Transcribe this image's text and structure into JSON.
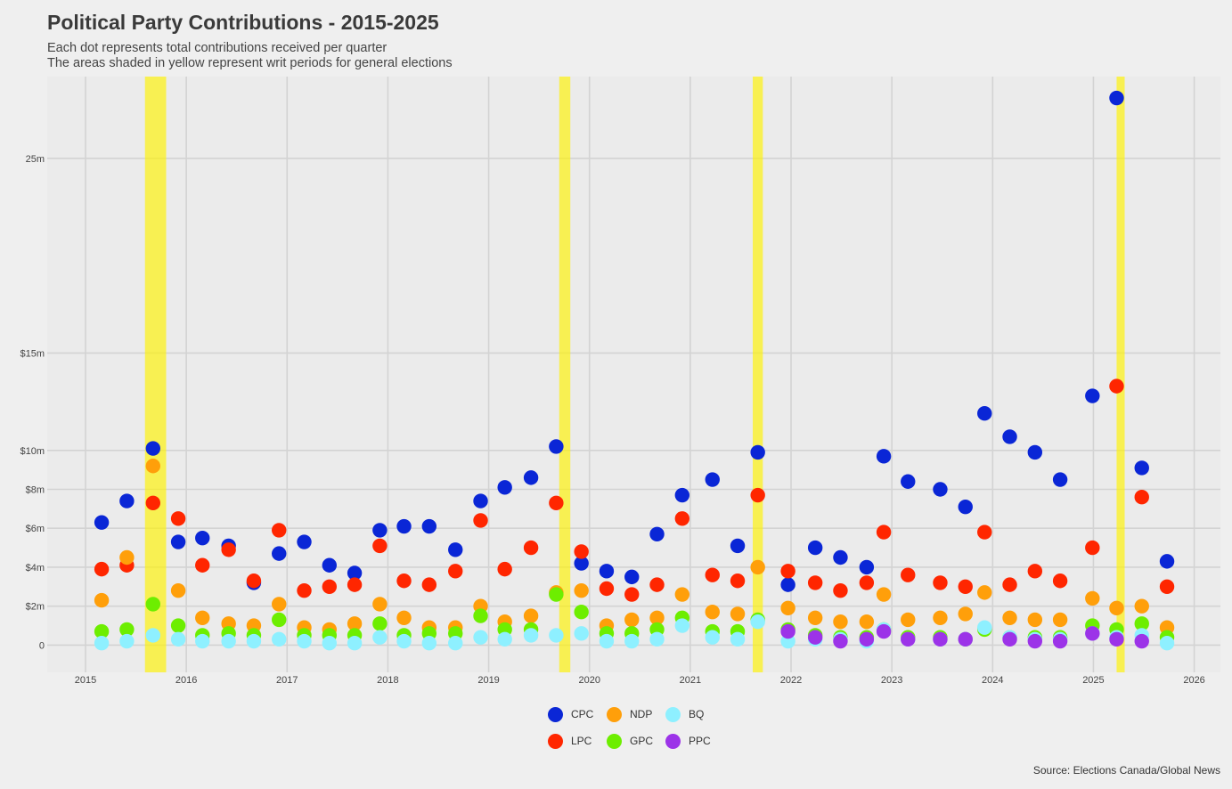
{
  "title": "Political Party Contributions - 2015-2025",
  "subtitle_line1": "Each dot represents total contributions received per quarter",
  "subtitle_line2": "The areas shaded in yellow represent writ periods for general elections",
  "source": "Source: Elections Canada/Global News",
  "chart_data": {
    "type": "scatter",
    "x_ticks": [
      "2015",
      "2016",
      "2017",
      "2018",
      "2019",
      "2020",
      "2021",
      "2022",
      "2023",
      "2024",
      "2025",
      "2026"
    ],
    "y_ticks": [
      {
        "value": 0,
        "label": "0"
      },
      {
        "value": 2000000,
        "label": "$2m"
      },
      {
        "value": 4000000,
        "label": "$4m"
      },
      {
        "value": 6000000,
        "label": "$6m"
      },
      {
        "value": 8000000,
        "label": "$8m"
      },
      {
        "value": 10000000,
        "label": "$10m"
      },
      {
        "value": 15000000,
        "label": "$15m"
      },
      {
        "value": 25000000,
        "label": "25m"
      }
    ],
    "xlim": [
      2014.62,
      2026.26
    ],
    "ylim": [
      -1400000,
      29200000
    ],
    "writ_periods": [
      [
        2015.59,
        2015.8
      ],
      [
        2019.7,
        2019.81
      ],
      [
        2021.62,
        2021.72
      ],
      [
        2025.23,
        2025.31
      ]
    ],
    "series": [
      {
        "name": "CPC",
        "color": "#0a26d6",
        "points": [
          [
            2015.16,
            6.3
          ],
          [
            2015.41,
            7.4
          ],
          [
            2015.67,
            10.1
          ],
          [
            2015.92,
            5.3
          ],
          [
            2016.16,
            5.5
          ],
          [
            2016.42,
            5.1
          ],
          [
            2016.67,
            3.2
          ],
          [
            2016.92,
            4.7
          ],
          [
            2017.17,
            5.3
          ],
          [
            2017.42,
            4.1
          ],
          [
            2017.67,
            3.7
          ],
          [
            2017.92,
            5.9
          ],
          [
            2018.16,
            6.1
          ],
          [
            2018.41,
            6.1
          ],
          [
            2018.67,
            4.9
          ],
          [
            2018.92,
            7.4
          ],
          [
            2019.16,
            8.1
          ],
          [
            2019.42,
            8.6
          ],
          [
            2019.67,
            10.2
          ],
          [
            2019.92,
            4.2
          ],
          [
            2020.17,
            3.8
          ],
          [
            2020.42,
            3.5
          ],
          [
            2020.67,
            5.7
          ],
          [
            2020.92,
            7.7
          ],
          [
            2021.22,
            8.5
          ],
          [
            2021.47,
            5.1
          ],
          [
            2021.67,
            9.9
          ],
          [
            2021.97,
            3.1
          ],
          [
            2022.24,
            5.0
          ],
          [
            2022.49,
            4.5
          ],
          [
            2022.75,
            4.0
          ],
          [
            2022.92,
            9.7
          ],
          [
            2023.16,
            8.4
          ],
          [
            2023.48,
            8.0
          ],
          [
            2023.73,
            7.1
          ],
          [
            2023.92,
            11.9
          ],
          [
            2024.17,
            10.7
          ],
          [
            2024.42,
            9.9
          ],
          [
            2024.67,
            8.5
          ],
          [
            2024.99,
            12.8
          ],
          [
            2025.23,
            28.1
          ],
          [
            2025.48,
            9.1
          ],
          [
            2025.73,
            4.3
          ]
        ]
      },
      {
        "name": "LPC",
        "color": "#ff2600",
        "points": [
          [
            2015.16,
            3.9
          ],
          [
            2015.41,
            4.1
          ],
          [
            2015.67,
            7.3
          ],
          [
            2015.92,
            6.5
          ],
          [
            2016.16,
            4.1
          ],
          [
            2016.42,
            4.9
          ],
          [
            2016.67,
            3.3
          ],
          [
            2016.92,
            5.9
          ],
          [
            2017.17,
            2.8
          ],
          [
            2017.42,
            3.0
          ],
          [
            2017.67,
            3.1
          ],
          [
            2017.92,
            5.1
          ],
          [
            2018.16,
            3.3
          ],
          [
            2018.41,
            3.1
          ],
          [
            2018.67,
            3.8
          ],
          [
            2018.92,
            6.4
          ],
          [
            2019.16,
            3.9
          ],
          [
            2019.42,
            5.0
          ],
          [
            2019.67,
            7.3
          ],
          [
            2019.92,
            4.8
          ],
          [
            2020.17,
            2.9
          ],
          [
            2020.42,
            2.6
          ],
          [
            2020.67,
            3.1
          ],
          [
            2020.92,
            6.5
          ],
          [
            2021.22,
            3.6
          ],
          [
            2021.47,
            3.3
          ],
          [
            2021.67,
            7.7
          ],
          [
            2021.97,
            3.8
          ],
          [
            2022.24,
            3.2
          ],
          [
            2022.49,
            2.8
          ],
          [
            2022.75,
            3.2
          ],
          [
            2022.92,
            5.8
          ],
          [
            2023.16,
            3.6
          ],
          [
            2023.48,
            3.2
          ],
          [
            2023.73,
            3.0
          ],
          [
            2023.92,
            5.8
          ],
          [
            2024.17,
            3.1
          ],
          [
            2024.42,
            3.8
          ],
          [
            2024.67,
            3.3
          ],
          [
            2024.99,
            5.0
          ],
          [
            2025.23,
            13.3
          ],
          [
            2025.48,
            7.6
          ],
          [
            2025.73,
            3.0
          ]
        ]
      },
      {
        "name": "NDP",
        "color": "#ff9f0a",
        "points": [
          [
            2015.16,
            2.3
          ],
          [
            2015.41,
            4.5
          ],
          [
            2015.67,
            9.2
          ],
          [
            2015.92,
            2.8
          ],
          [
            2016.16,
            1.4
          ],
          [
            2016.42,
            1.1
          ],
          [
            2016.67,
            1.0
          ],
          [
            2016.92,
            2.1
          ],
          [
            2017.17,
            0.9
          ],
          [
            2017.42,
            0.8
          ],
          [
            2017.67,
            1.1
          ],
          [
            2017.92,
            2.1
          ],
          [
            2018.16,
            1.4
          ],
          [
            2018.41,
            0.9
          ],
          [
            2018.67,
            0.9
          ],
          [
            2018.92,
            2.0
          ],
          [
            2019.16,
            1.2
          ],
          [
            2019.42,
            1.5
          ],
          [
            2019.67,
            2.7
          ],
          [
            2019.92,
            2.8
          ],
          [
            2020.17,
            1.0
          ],
          [
            2020.42,
            1.3
          ],
          [
            2020.67,
            1.4
          ],
          [
            2020.92,
            2.6
          ],
          [
            2021.22,
            1.7
          ],
          [
            2021.47,
            1.6
          ],
          [
            2021.67,
            4.0
          ],
          [
            2021.97,
            1.9
          ],
          [
            2022.24,
            1.4
          ],
          [
            2022.49,
            1.2
          ],
          [
            2022.75,
            1.2
          ],
          [
            2022.92,
            2.6
          ],
          [
            2023.16,
            1.3
          ],
          [
            2023.48,
            1.4
          ],
          [
            2023.73,
            1.6
          ],
          [
            2023.92,
            2.7
          ],
          [
            2024.17,
            1.4
          ],
          [
            2024.42,
            1.3
          ],
          [
            2024.67,
            1.3
          ],
          [
            2024.99,
            2.4
          ],
          [
            2025.23,
            1.9
          ],
          [
            2025.48,
            2.0
          ],
          [
            2025.73,
            0.9
          ]
        ]
      },
      {
        "name": "GPC",
        "color": "#6dee00",
        "points": [
          [
            2015.16,
            0.7
          ],
          [
            2015.41,
            0.8
          ],
          [
            2015.67,
            2.1
          ],
          [
            2015.92,
            1.0
          ],
          [
            2016.16,
            0.5
          ],
          [
            2016.42,
            0.6
          ],
          [
            2016.67,
            0.5
          ],
          [
            2016.92,
            1.3
          ],
          [
            2017.17,
            0.5
          ],
          [
            2017.42,
            0.5
          ],
          [
            2017.67,
            0.5
          ],
          [
            2017.92,
            1.1
          ],
          [
            2018.16,
            0.5
          ],
          [
            2018.41,
            0.6
          ],
          [
            2018.67,
            0.6
          ],
          [
            2018.92,
            1.5
          ],
          [
            2019.16,
            0.8
          ],
          [
            2019.42,
            0.8
          ],
          [
            2019.67,
            2.6
          ],
          [
            2019.92,
            1.7
          ],
          [
            2020.17,
            0.6
          ],
          [
            2020.42,
            0.6
          ],
          [
            2020.67,
            0.8
          ],
          [
            2020.92,
            1.4
          ],
          [
            2021.22,
            0.7
          ],
          [
            2021.47,
            0.7
          ],
          [
            2021.67,
            1.3
          ],
          [
            2021.97,
            0.8
          ],
          [
            2022.24,
            0.5
          ],
          [
            2022.49,
            0.4
          ],
          [
            2022.75,
            0.4
          ],
          [
            2022.92,
            0.8
          ],
          [
            2023.16,
            0.4
          ],
          [
            2023.48,
            0.4
          ],
          [
            2023.73,
            0.3
          ],
          [
            2023.92,
            0.8
          ],
          [
            2024.17,
            0.4
          ],
          [
            2024.42,
            0.4
          ],
          [
            2024.67,
            0.4
          ],
          [
            2024.99,
            1.0
          ],
          [
            2025.23,
            0.8
          ],
          [
            2025.48,
            1.1
          ],
          [
            2025.73,
            0.4
          ]
        ]
      },
      {
        "name": "BQ",
        "color": "#8ef0ff",
        "points": [
          [
            2015.16,
            0.1
          ],
          [
            2015.41,
            0.2
          ],
          [
            2015.67,
            0.5
          ],
          [
            2015.92,
            0.3
          ],
          [
            2016.16,
            0.2
          ],
          [
            2016.42,
            0.2
          ],
          [
            2016.67,
            0.2
          ],
          [
            2016.92,
            0.3
          ],
          [
            2017.17,
            0.2
          ],
          [
            2017.42,
            0.1
          ],
          [
            2017.67,
            0.1
          ],
          [
            2017.92,
            0.4
          ],
          [
            2018.16,
            0.2
          ],
          [
            2018.41,
            0.1
          ],
          [
            2018.67,
            0.1
          ],
          [
            2018.92,
            0.4
          ],
          [
            2019.16,
            0.3
          ],
          [
            2019.42,
            0.5
          ],
          [
            2019.67,
            0.5
          ],
          [
            2019.92,
            0.6
          ],
          [
            2020.17,
            0.2
          ],
          [
            2020.42,
            0.2
          ],
          [
            2020.67,
            0.3
          ],
          [
            2020.92,
            1.0
          ],
          [
            2021.22,
            0.4
          ],
          [
            2021.47,
            0.3
          ],
          [
            2021.67,
            1.2
          ],
          [
            2021.97,
            0.2
          ],
          [
            2022.24,
            0.3
          ],
          [
            2022.49,
            0.3
          ],
          [
            2022.75,
            0.2
          ],
          [
            2022.92,
            0.8
          ],
          [
            2023.16,
            0.3
          ],
          [
            2023.48,
            0.3
          ],
          [
            2023.73,
            0.3
          ],
          [
            2023.92,
            0.9
          ],
          [
            2024.17,
            0.4
          ],
          [
            2024.42,
            0.3
          ],
          [
            2024.67,
            0.3
          ],
          [
            2024.99,
            0.6
          ],
          [
            2025.23,
            0.4
          ],
          [
            2025.48,
            0.5
          ],
          [
            2025.73,
            0.1
          ]
        ]
      },
      {
        "name": "PPC",
        "color": "#9c33e8",
        "points": [
          [
            2021.97,
            0.7
          ],
          [
            2022.24,
            0.4
          ],
          [
            2022.49,
            0.2
          ],
          [
            2022.75,
            0.3
          ],
          [
            2022.92,
            0.7
          ],
          [
            2023.16,
            0.3
          ],
          [
            2023.48,
            0.3
          ],
          [
            2023.73,
            0.3
          ],
          [
            2024.17,
            0.3
          ],
          [
            2024.42,
            0.2
          ],
          [
            2024.67,
            0.2
          ],
          [
            2024.99,
            0.6
          ],
          [
            2025.23,
            0.3
          ],
          [
            2025.48,
            0.2
          ]
        ]
      }
    ],
    "y_unit_note": "point y values in millions of dollars"
  },
  "legend": [
    {
      "name": "CPC",
      "color": "#0a26d6"
    },
    {
      "name": "NDP",
      "color": "#ff9f0a"
    },
    {
      "name": "BQ",
      "color": "#8ef0ff"
    },
    {
      "name": "LPC",
      "color": "#ff2600"
    },
    {
      "name": "GPC",
      "color": "#6dee00"
    },
    {
      "name": "PPC",
      "color": "#9c33e8"
    }
  ]
}
